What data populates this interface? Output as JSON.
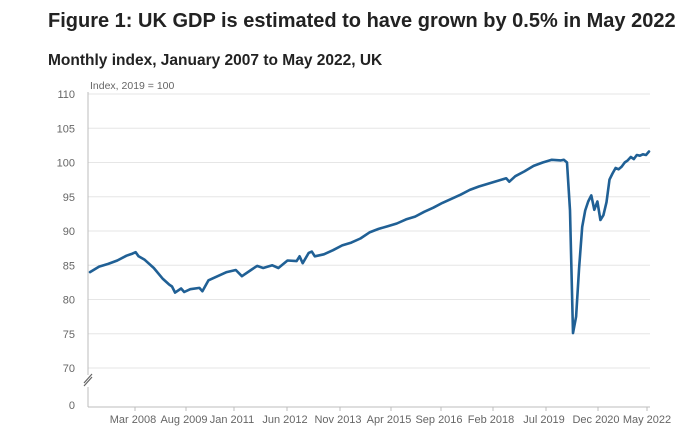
{
  "figure": {
    "title": "Figure 1: UK GDP is estimated to have grown by 0.5% in May 2022",
    "subtitle": "Monthly index, January 2007 to May 2022, UK"
  },
  "chart_data": {
    "type": "line",
    "title": "Figure 1: UK GDP is estimated to have grown by 0.5% in May 2022",
    "subtitle": "Monthly index, January 2007 to May 2022, UK",
    "ylabel": "Index, 2019 = 100",
    "xlabel": "",
    "ylim": [
      0,
      110
    ],
    "y_axis_break": [
      0,
      70
    ],
    "y_ticks": [
      "110",
      "105",
      "100",
      "95",
      "90",
      "85",
      "80",
      "75",
      "70",
      "0"
    ],
    "x_ticks": [
      "Mar 2008",
      "Aug 2009",
      "Jan 2011",
      "Jun 2012",
      "Nov 2013",
      "Apr 2015",
      "Sep 2016",
      "Feb 2018",
      "Jul 2019",
      "Dec 2020",
      "May 2022"
    ],
    "grid": true,
    "legend": "none",
    "line_color": "#206095",
    "series": [
      {
        "values": [
          {
            "x": "2007-01",
            "y": 84.0
          },
          {
            "x": "2007-04",
            "y": 84.8
          },
          {
            "x": "2007-07",
            "y": 85.2
          },
          {
            "x": "2007-10",
            "y": 85.7
          },
          {
            "x": "2008-01",
            "y": 86.4
          },
          {
            "x": "2008-03",
            "y": 86.7
          },
          {
            "x": "2008-04",
            "y": 86.9
          },
          {
            "x": "2008-05",
            "y": 86.3
          },
          {
            "x": "2008-07",
            "y": 85.8
          },
          {
            "x": "2008-10",
            "y": 84.6
          },
          {
            "x": "2009-01",
            "y": 83.0
          },
          {
            "x": "2009-03",
            "y": 82.2
          },
          {
            "x": "2009-04",
            "y": 81.9
          },
          {
            "x": "2009-05",
            "y": 81.0
          },
          {
            "x": "2009-07",
            "y": 81.6
          },
          {
            "x": "2009-08",
            "y": 81.1
          },
          {
            "x": "2009-10",
            "y": 81.5
          },
          {
            "x": "2010-01",
            "y": 81.7
          },
          {
            "x": "2010-02",
            "y": 81.2
          },
          {
            "x": "2010-04",
            "y": 82.8
          },
          {
            "x": "2010-07",
            "y": 83.4
          },
          {
            "x": "2010-10",
            "y": 84.0
          },
          {
            "x": "2011-01",
            "y": 84.3
          },
          {
            "x": "2011-03",
            "y": 83.4
          },
          {
            "x": "2011-06",
            "y": 84.3
          },
          {
            "x": "2011-08",
            "y": 84.9
          },
          {
            "x": "2011-10",
            "y": 84.6
          },
          {
            "x": "2012-01",
            "y": 85.0
          },
          {
            "x": "2012-03",
            "y": 84.6
          },
          {
            "x": "2012-06",
            "y": 85.7
          },
          {
            "x": "2012-09",
            "y": 85.6
          },
          {
            "x": "2012-10",
            "y": 86.3
          },
          {
            "x": "2012-11",
            "y": 85.3
          },
          {
            "x": "2013-01",
            "y": 86.8
          },
          {
            "x": "2013-02",
            "y": 87.0
          },
          {
            "x": "2013-03",
            "y": 86.3
          },
          {
            "x": "2013-06",
            "y": 86.6
          },
          {
            "x": "2013-09",
            "y": 87.2
          },
          {
            "x": "2013-12",
            "y": 87.9
          },
          {
            "x": "2014-03",
            "y": 88.3
          },
          {
            "x": "2014-06",
            "y": 88.9
          },
          {
            "x": "2014-09",
            "y": 89.8
          },
          {
            "x": "2014-12",
            "y": 90.3
          },
          {
            "x": "2015-03",
            "y": 90.7
          },
          {
            "x": "2015-06",
            "y": 91.1
          },
          {
            "x": "2015-09",
            "y": 91.7
          },
          {
            "x": "2015-12",
            "y": 92.1
          },
          {
            "x": "2016-03",
            "y": 92.8
          },
          {
            "x": "2016-06",
            "y": 93.4
          },
          {
            "x": "2016-09",
            "y": 94.1
          },
          {
            "x": "2016-12",
            "y": 94.7
          },
          {
            "x": "2017-03",
            "y": 95.3
          },
          {
            "x": "2017-06",
            "y": 96.0
          },
          {
            "x": "2017-09",
            "y": 96.5
          },
          {
            "x": "2017-12",
            "y": 96.9
          },
          {
            "x": "2018-03",
            "y": 97.3
          },
          {
            "x": "2018-06",
            "y": 97.7
          },
          {
            "x": "2018-07",
            "y": 97.2
          },
          {
            "x": "2018-09",
            "y": 98.0
          },
          {
            "x": "2018-12",
            "y": 98.7
          },
          {
            "x": "2019-03",
            "y": 99.5
          },
          {
            "x": "2019-06",
            "y": 100.0
          },
          {
            "x": "2019-09",
            "y": 100.4
          },
          {
            "x": "2019-12",
            "y": 100.3
          },
          {
            "x": "2020-01",
            "y": 100.4
          },
          {
            "x": "2020-02",
            "y": 100.0
          },
          {
            "x": "2020-03",
            "y": 93.0
          },
          {
            "x": "2020-04",
            "y": 75.1
          },
          {
            "x": "2020-05",
            "y": 77.5
          },
          {
            "x": "2020-06",
            "y": 84.6
          },
          {
            "x": "2020-07",
            "y": 90.6
          },
          {
            "x": "2020-08",
            "y": 93.0
          },
          {
            "x": "2020-09",
            "y": 94.3
          },
          {
            "x": "2020-10",
            "y": 95.2
          },
          {
            "x": "2020-11",
            "y": 93.1
          },
          {
            "x": "2020-12",
            "y": 94.3
          },
          {
            "x": "2021-01",
            "y": 91.6
          },
          {
            "x": "2021-02",
            "y": 92.3
          },
          {
            "x": "2021-03",
            "y": 94.2
          },
          {
            "x": "2021-04",
            "y": 97.5
          },
          {
            "x": "2021-05",
            "y": 98.4
          },
          {
            "x": "2021-06",
            "y": 99.2
          },
          {
            "x": "2021-07",
            "y": 99.0
          },
          {
            "x": "2021-08",
            "y": 99.4
          },
          {
            "x": "2021-09",
            "y": 100.0
          },
          {
            "x": "2021-10",
            "y": 100.3
          },
          {
            "x": "2021-11",
            "y": 100.8
          },
          {
            "x": "2021-12",
            "y": 100.5
          },
          {
            "x": "2022-01",
            "y": 101.1
          },
          {
            "x": "2022-02",
            "y": 101.0
          },
          {
            "x": "2022-03",
            "y": 101.2
          },
          {
            "x": "2022-04",
            "y": 101.1
          },
          {
            "x": "2022-05",
            "y": 101.6
          }
        ]
      }
    ]
  }
}
